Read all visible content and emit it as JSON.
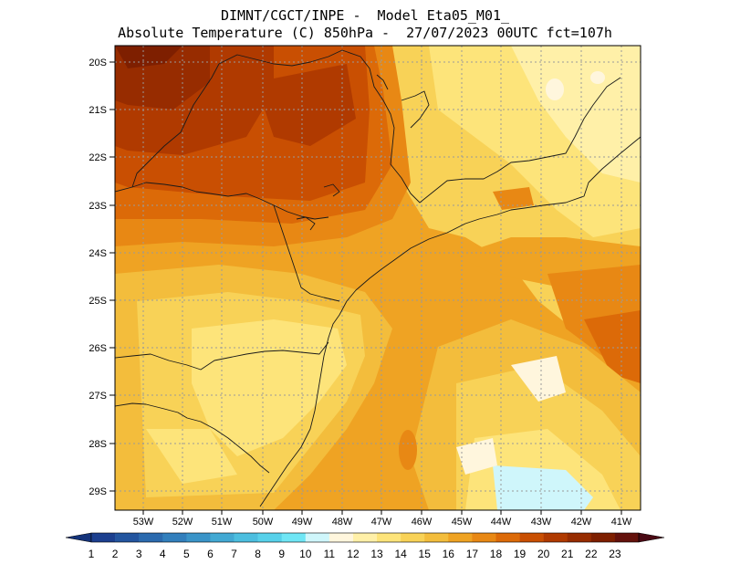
{
  "header": {
    "line1": "DIMNT/CGCT/INPE -  Model Eta05_M01_",
    "line2": "Absolute Temperature (C) 850hPa -  27/07/2023 00UTC fct=107h"
  },
  "axes": {
    "lat_labels": [
      "20S",
      "21S",
      "22S",
      "23S",
      "24S",
      "25S",
      "26S",
      "27S",
      "28S",
      "29S"
    ],
    "lon_labels": [
      "53W",
      "52W",
      "51W",
      "50W",
      "49W",
      "48W",
      "47W",
      "46W",
      "45W",
      "44W",
      "43W",
      "42W",
      "41W"
    ]
  },
  "colorbar": {
    "labels": [
      "1",
      "2",
      "3",
      "4",
      "5",
      "6",
      "7",
      "8",
      "9",
      "10",
      "11",
      "12",
      "13",
      "14",
      "15",
      "16",
      "17",
      "18",
      "19",
      "20",
      "21",
      "22",
      "23"
    ],
    "colors": [
      "#1c3f8f",
      "#23559f",
      "#2b6aae",
      "#327fbc",
      "#3a94c8",
      "#42a9d3",
      "#4cbedf",
      "#57d1ea",
      "#6fe6f5",
      "#cff6fb",
      "#fff6dd",
      "#fff0a8",
      "#fde47a",
      "#f8d257",
      "#f3bd3c",
      "#efa323",
      "#e88814",
      "#dc6a08",
      "#c94f02",
      "#b03a00",
      "#972c00",
      "#7e1f00",
      "#64120c"
    ],
    "under_color": "#14337a",
    "over_color": "#4a0a14"
  }
}
